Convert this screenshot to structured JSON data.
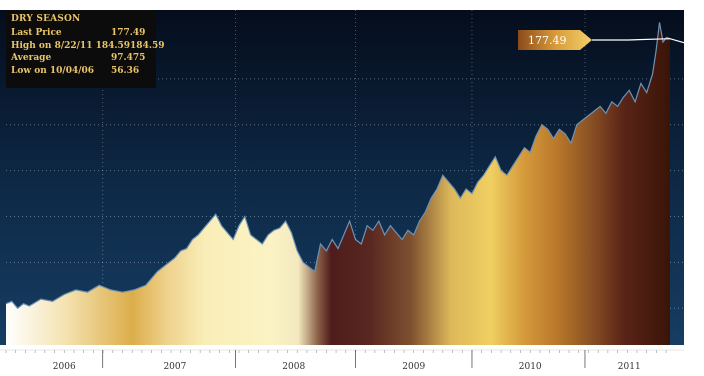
{
  "info_box": {
    "title": "DRY SEASON",
    "rows": [
      {
        "label": "Last Price",
        "value": "177.49"
      },
      {
        "label": "High on 8/22/11 184.59",
        "value": "184.59"
      },
      {
        "label": "Average",
        "value": "97.475"
      },
      {
        "label": "Low on 10/04/06",
        "value": "56.36"
      }
    ]
  },
  "callout": {
    "value": "177.49"
  },
  "colors": {
    "background": "#0e2a48",
    "line": "#6f92b3",
    "panel": "#0c0c0c",
    "panel_text": "#e9c46a"
  },
  "chart_data": {
    "type": "area",
    "title": "DRY SEASON",
    "xlabel": "",
    "ylabel": "",
    "ylim": [
      44,
      190
    ],
    "y_ticks": [
      60,
      80,
      100,
      120,
      140,
      160
    ],
    "x_labels": [
      "2006",
      "2007",
      "2008",
      "2009",
      "2010",
      "2011"
    ],
    "x_label_positions": [
      2006.5,
      2007.45,
      2008.47,
      2009.5,
      2010.5,
      2011.35
    ],
    "x_dividers": [
      2006.83,
      2007.97,
      2009.0,
      2010.0,
      2010.97
    ],
    "series": [
      {
        "x": [
          2006.0,
          2006.05,
          2006.1,
          2006.15,
          2006.2,
          2006.3,
          2006.4,
          2006.5,
          2006.6,
          2006.7,
          2006.8,
          2006.9,
          2007.0,
          2007.1,
          2007.2,
          2007.3,
          2007.4,
          2007.45,
          2007.5,
          2007.55,
          2007.6,
          2007.65,
          2007.7,
          2007.75,
          2007.8,
          2007.85,
          2007.9,
          2007.95,
          2008.0,
          2008.05,
          2008.1,
          2008.15,
          2008.2,
          2008.25,
          2008.3,
          2008.35,
          2008.4,
          2008.45,
          2008.5,
          2008.55,
          2008.6,
          2008.65,
          2008.7,
          2008.75,
          2008.8,
          2008.85,
          2008.9,
          2008.95,
          2009.0,
          2009.05,
          2009.1,
          2009.15,
          2009.2,
          2009.25,
          2009.3,
          2009.35,
          2009.4,
          2009.45,
          2009.5,
          2009.55,
          2009.6,
          2009.65,
          2009.7,
          2009.75,
          2009.8,
          2009.85,
          2009.9,
          2009.95,
          2010.0,
          2010.05,
          2010.1,
          2010.15,
          2010.2,
          2010.25,
          2010.3,
          2010.35,
          2010.4,
          2010.45,
          2010.5,
          2010.55,
          2010.6,
          2010.65,
          2010.7,
          2010.75,
          2010.8,
          2010.85,
          2010.9,
          2010.95,
          2011.0,
          2011.05,
          2011.1,
          2011.15,
          2011.2,
          2011.25,
          2011.3,
          2011.35,
          2011.4,
          2011.45,
          2011.5,
          2011.55,
          2011.58,
          2011.61,
          2011.64,
          2011.67,
          2011.7
        ],
        "y": [
          62,
          63,
          60,
          62,
          61,
          64,
          63,
          66,
          68,
          67,
          70,
          68,
          67,
          68,
          70,
          76,
          80,
          82,
          85,
          86,
          90,
          92,
          95,
          98,
          101,
          96,
          93,
          90,
          96,
          100,
          92,
          90,
          88,
          92,
          94,
          95,
          98,
          93,
          85,
          80,
          78,
          76,
          88,
          85,
          90,
          86,
          92,
          98,
          90,
          88,
          96,
          94,
          98,
          92,
          96,
          93,
          90,
          94,
          92,
          98,
          102,
          108,
          112,
          118,
          115,
          112,
          108,
          112,
          110,
          115,
          118,
          122,
          126,
          120,
          118,
          122,
          126,
          130,
          128,
          135,
          140,
          138,
          134,
          138,
          136,
          132,
          140,
          142,
          144,
          146,
          148,
          145,
          150,
          148,
          152,
          155,
          150,
          158,
          154,
          162,
          172,
          184.59,
          176,
          178,
          177.49
        ]
      }
    ]
  }
}
